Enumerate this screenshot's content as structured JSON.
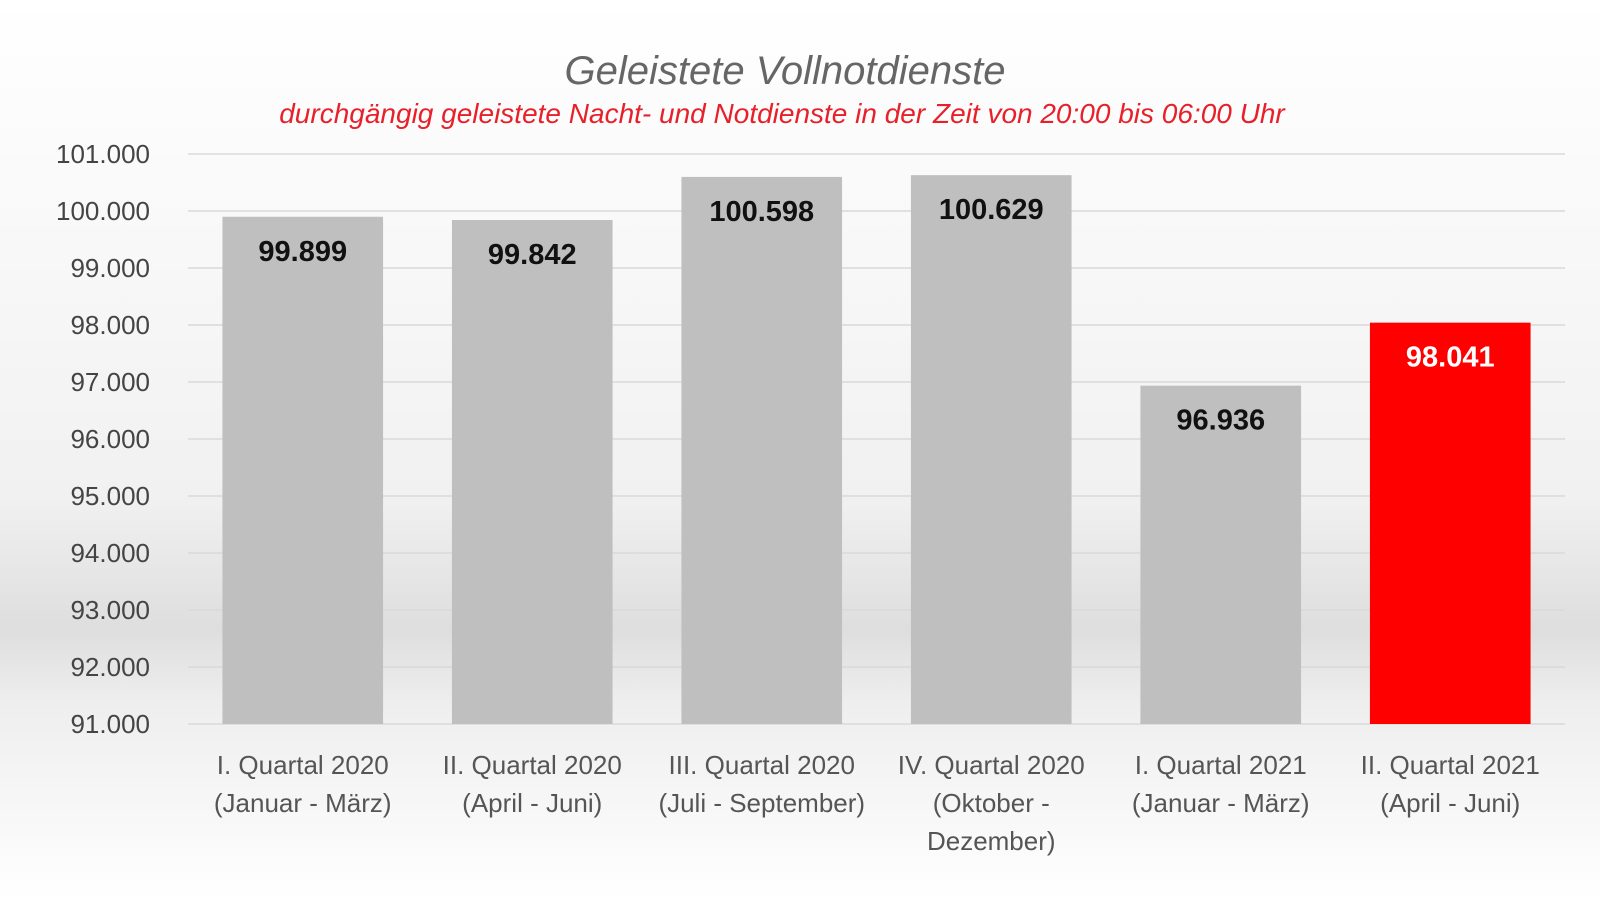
{
  "chart_data": {
    "type": "bar",
    "title": "Geleistete Vollnotdienste",
    "subtitle": "durchgängig geleistete Nacht- und Notdienste in der Zeit von 20:00 bis 06:00 Uhr",
    "categories": [
      [
        "I. Quartal 2020",
        "(Januar - März)"
      ],
      [
        "II. Quartal 2020",
        "(April - Juni)"
      ],
      [
        "III. Quartal 2020",
        "(Juli - September)"
      ],
      [
        "IV. Quartal 2020",
        "(Oktober -",
        "Dezember)"
      ],
      [
        "I. Quartal 2021",
        "(Januar - März)"
      ],
      [
        "II. Quartal 2021",
        "(April - Juni)"
      ]
    ],
    "values": [
      99899,
      99842,
      100598,
      100629,
      96936,
      98041
    ],
    "value_labels": [
      "99.899",
      "99.842",
      "100.598",
      "100.629",
      "96.936",
      "98.041"
    ],
    "highlight_index": 5,
    "ylim": [
      91000,
      101000
    ],
    "yticks": [
      91000,
      92000,
      93000,
      94000,
      95000,
      96000,
      97000,
      98000,
      99000,
      100000,
      101000
    ],
    "ytick_labels": [
      "91.000",
      "92.000",
      "93.000",
      "94.000",
      "95.000",
      "96.000",
      "97.000",
      "98.000",
      "99.000",
      "100.000",
      "101.000"
    ],
    "xlabel": "",
    "ylabel": "",
    "grid": true,
    "colors": {
      "bar": "#bfbfbf",
      "highlight_bar": "#ff0000",
      "label": "#111111",
      "highlight_label": "#ffffff",
      "grid": "#d9d9d9",
      "title": "#666666",
      "subtitle": "#e8202a"
    }
  }
}
